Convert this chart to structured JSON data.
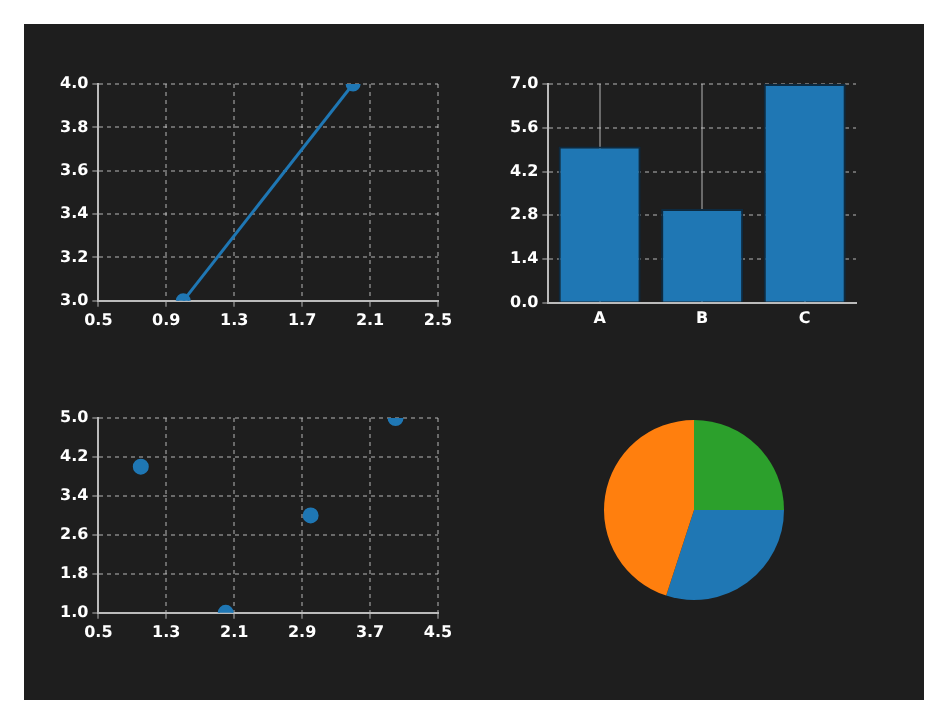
{
  "chart_data": [
    {
      "type": "line",
      "x": [
        1,
        2
      ],
      "values": [
        3,
        4
      ],
      "color": "#1f77b4",
      "xlim": [
        0.5,
        2.5
      ],
      "xticks": [
        0.5,
        0.9,
        1.3,
        1.7,
        2.1,
        2.5
      ],
      "ylim": [
        3,
        4
      ],
      "yticks": [
        {
          "value": 3,
          "label": "3.0"
        },
        3.2,
        3.4,
        3.6,
        3.8,
        {
          "value": 4,
          "label": "4.0"
        }
      ],
      "grid": true,
      "legend": false,
      "marker": "circle",
      "line_style": "solid"
    },
    {
      "type": "bar",
      "categories": [
        "A",
        "B",
        "C"
      ],
      "values": [
        5,
        3,
        7
      ],
      "color": "#1f77b4",
      "ylim": [
        0,
        7
      ],
      "yticks": [
        {
          "value": 0,
          "label": "0.0"
        },
        1.4,
        2.8,
        4.2,
        5.6,
        {
          "value": 7,
          "label": "7.0"
        }
      ],
      "grid": true,
      "legend": false
    },
    {
      "type": "scatter",
      "x": [
        1,
        2,
        3,
        4
      ],
      "values": [
        4,
        1,
        3,
        5
      ],
      "color": "#1f77b4",
      "xlim": [
        0.5,
        4.5
      ],
      "xticks": [
        0.5,
        1.3,
        2.1,
        2.9,
        3.7,
        4.5
      ],
      "ylim": [
        1,
        5
      ],
      "yticks": [
        {
          "value": 1,
          "label": "1.0"
        },
        1.8,
        2.6,
        3.4,
        4.2,
        {
          "value": 5,
          "label": "5.0"
        }
      ],
      "grid": true,
      "legend": false,
      "marker": "circle"
    },
    {
      "type": "pie",
      "categories": [
        null,
        null,
        null
      ],
      "values": [
        30,
        45,
        25
      ],
      "colors": [
        "#1f77b4",
        "#ff7f0e",
        "#2ca02c"
      ],
      "legend": false
    }
  ]
}
